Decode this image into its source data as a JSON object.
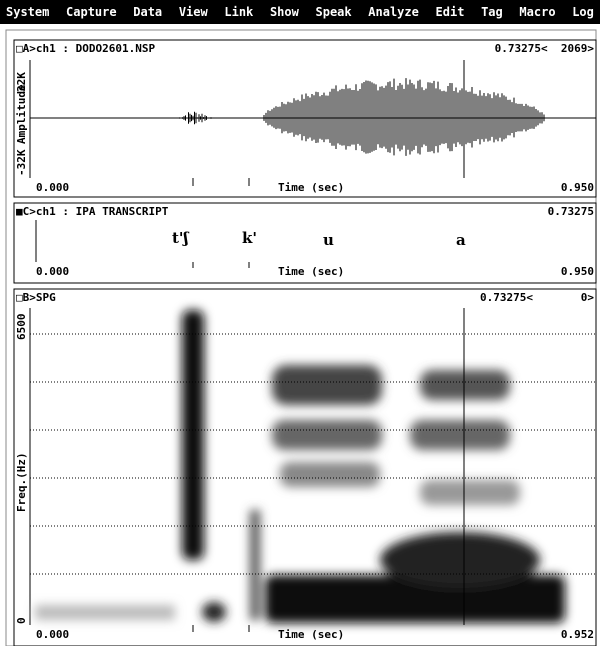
{
  "menu": [
    "System",
    "Capture",
    "Data",
    "View",
    "Link",
    "Show",
    "Speak",
    "Analyze",
    "Edit",
    "Tag",
    "Macro",
    "Log"
  ],
  "panels": {
    "a": {
      "header": "□A>ch1 : DODO2601.NSP",
      "cursor": "0.73275<  2069>",
      "y_top": "32K",
      "y_label": "Amplitude",
      "y_bottom": "-32K",
      "x_start": "0.000",
      "x_label": "Time (sec)",
      "x_end": "0.950"
    },
    "c": {
      "header": "■C>ch1 : IPA TRANSCRIPT",
      "cursor": "0.73275",
      "transcript": [
        "t'ʃ",
        "k'",
        "u",
        "a"
      ],
      "x_start": "0.000",
      "x_label": "Time (sec)",
      "x_end": "0.950"
    },
    "b": {
      "header": "□B>SPG",
      "cursor": "0.73275<",
      "cursor_value": "0>",
      "y_top": "6500",
      "y_label": "Freq.(Hz)",
      "y_bottom": "0",
      "x_start": "0.000",
      "x_label": "Time (sec)",
      "x_end": "0.952"
    }
  }
}
